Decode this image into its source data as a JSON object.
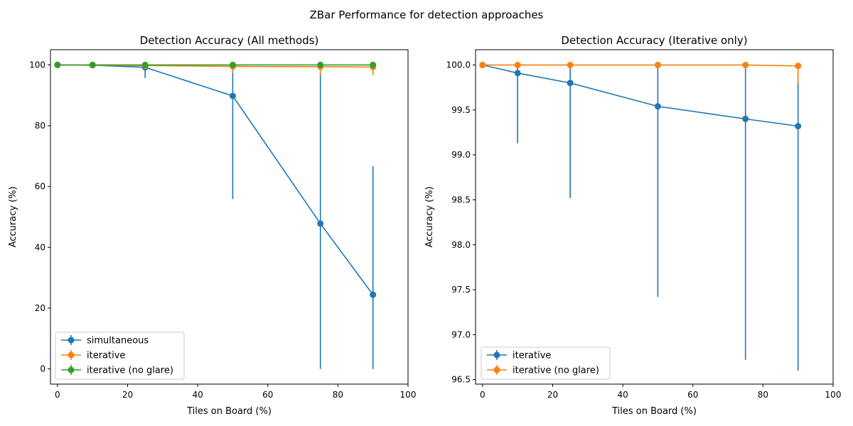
{
  "figure_title": "ZBar Performance for detection approaches",
  "chart_data": [
    {
      "type": "line",
      "title": "Detection Accuracy (All methods)",
      "xlabel": "Tiles on Board (%)",
      "ylabel": "Accuracy (%)",
      "xlim": [
        -2,
        100
      ],
      "ylim": [
        -5,
        105
      ],
      "xticks": [
        0,
        20,
        40,
        60,
        80,
        100
      ],
      "yticks": [
        0,
        20,
        40,
        60,
        80,
        100
      ],
      "ytick_labels": [
        "0",
        "20",
        "40",
        "60",
        "80",
        "100"
      ],
      "grid": false,
      "legend_position": "lower-left",
      "x": [
        0,
        10,
        25,
        50,
        75,
        90
      ],
      "series": [
        {
          "name": "simultaneous",
          "color": "#1f77b4",
          "values": [
            100,
            99.9,
            99.2,
            89.8,
            47.8,
            24.4
          ],
          "err_low": [
            0,
            0.1,
            3.5,
            33.9,
            47.8,
            24.4
          ],
          "err_high": [
            0,
            0.1,
            0.8,
            10.2,
            52.2,
            42.3
          ]
        },
        {
          "name": "iterative",
          "color": "#ff7f0e",
          "values": [
            100,
            99.9,
            99.8,
            99.5,
            99.4,
            99.3
          ],
          "err_low": [
            0,
            0.8,
            1.3,
            2.1,
            2.7,
            2.7
          ],
          "err_high": [
            0,
            0.1,
            0.2,
            0.5,
            0.6,
            0.7
          ]
        },
        {
          "name": "iterative (no glare)",
          "color": "#2ca02c",
          "values": [
            100,
            100,
            100,
            100,
            100,
            100
          ],
          "err_low": [
            0,
            0,
            0,
            0,
            0,
            0.2
          ],
          "err_high": [
            0,
            0,
            0,
            0,
            0,
            0
          ]
        }
      ]
    },
    {
      "type": "line",
      "title": "Detection Accuracy (Iterative only)",
      "xlabel": "Tiles on Board (%)",
      "ylabel": "Accuracy (%)",
      "xlim": [
        -2,
        100
      ],
      "ylim": [
        96.45,
        100.17
      ],
      "xticks": [
        0,
        20,
        40,
        60,
        80,
        100
      ],
      "yticks": [
        96.5,
        97.0,
        97.5,
        98.0,
        98.5,
        99.0,
        99.5,
        100.0
      ],
      "ytick_labels": [
        "96.5",
        "97.0",
        "97.5",
        "98.0",
        "98.5",
        "99.0",
        "99.5",
        "100.0"
      ],
      "grid": false,
      "legend_position": "lower-left",
      "x": [
        0,
        10,
        25,
        50,
        75,
        90
      ],
      "series": [
        {
          "name": "iterative",
          "color": "#1f77b4",
          "values": [
            100,
            99.91,
            99.8,
            99.54,
            99.4,
            99.32
          ],
          "err_low": [
            0,
            0.78,
            1.28,
            2.12,
            2.68,
            2.72
          ],
          "err_high": [
            0,
            0.09,
            0.2,
            0.46,
            0.6,
            0.68
          ]
        },
        {
          "name": "iterative (no glare)",
          "color": "#ff7f0e",
          "values": [
            100,
            100,
            100,
            100,
            100,
            99.99
          ],
          "err_low": [
            0,
            0,
            0,
            0,
            0,
            0.19
          ],
          "err_high": [
            0,
            0,
            0,
            0,
            0,
            0.01
          ]
        }
      ]
    }
  ]
}
